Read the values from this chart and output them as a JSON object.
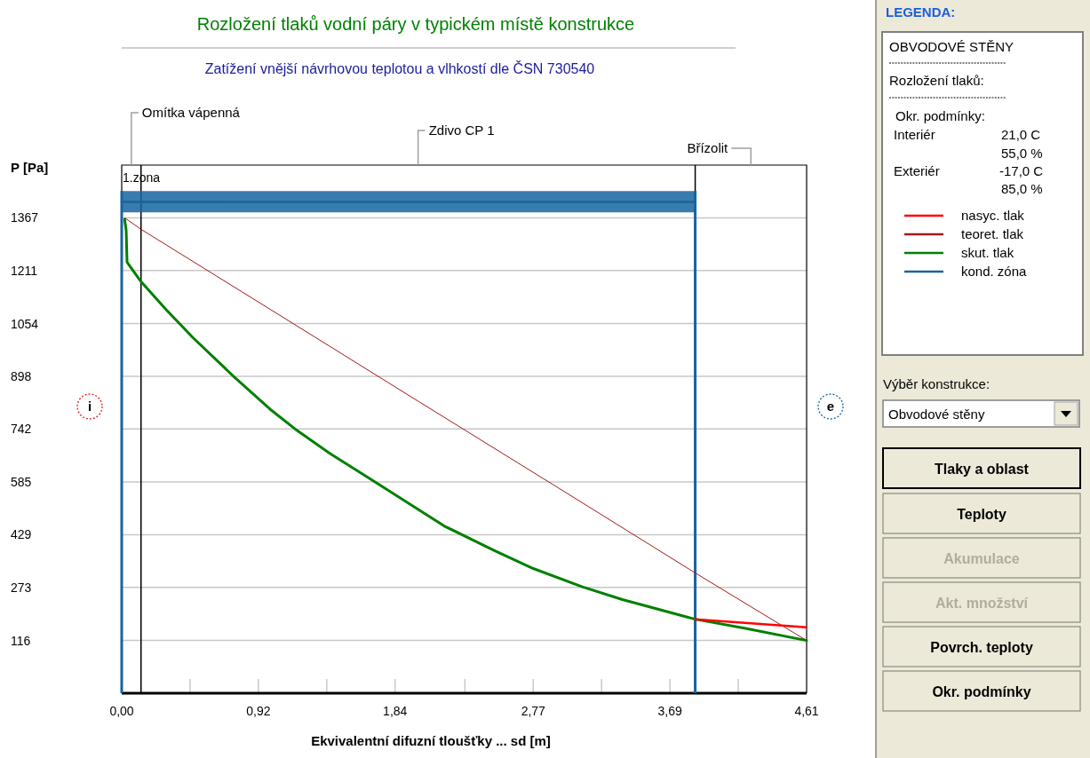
{
  "chart_data": {
    "type": "line",
    "title": "Rozložení tlaků vodní páry v typickém místě konstrukce",
    "subtitle": "Zatížení vnější návrhovou teplotou a vlhkostí dle ČSN 730540",
    "xlabel": "Ekvivalentní difuzní tloušťky ... sd [m]",
    "ylabel": "P [Pa]",
    "legend_title": "LEGENDA:",
    "xlim": [
      0,
      4.61
    ],
    "ylim": [
      -40,
      1523
    ],
    "xticks": [
      {
        "value": 0,
        "label": "0,00"
      },
      {
        "value": 0.46,
        "label": null
      },
      {
        "value": 0.92,
        "label": "0,92"
      },
      {
        "value": 1.38,
        "label": null
      },
      {
        "value": 1.84,
        "label": "1,84"
      },
      {
        "value": 2.31,
        "label": null
      },
      {
        "value": 2.77,
        "label": "2,77"
      },
      {
        "value": 3.23,
        "label": null
      },
      {
        "value": 3.69,
        "label": "3,69"
      },
      {
        "value": 4.15,
        "label": null
      },
      {
        "value": 4.61,
        "label": "4,61"
      }
    ],
    "yticks": [
      116,
      273,
      429,
      585,
      742,
      898,
      1054,
      1211,
      1367
    ],
    "grid": "y",
    "legend": "right",
    "line_style": "solid",
    "marker": "none",
    "series": [
      {
        "name": "nasyc. tlak",
        "color": "#ff0000",
        "x": [
          3.86,
          4.61
        ],
        "values": [
          179,
          155
        ]
      },
      {
        "name": "teoret. tlak",
        "color": "#a01818",
        "x": [
          0.02,
          0.13,
          1.0,
          2.0,
          3.0,
          3.86,
          4.61
        ],
        "values": [
          1367,
          1333,
          1096,
          823,
          551,
          316,
          116
        ]
      },
      {
        "name": "skut. tlak",
        "color": "#008000",
        "x": [
          0.02,
          0.03,
          0.036,
          0.13,
          0.3,
          0.48,
          0.75,
          1.0,
          1.17,
          1.4,
          1.71,
          2.17,
          2.5,
          2.77,
          3.1,
          3.37,
          3.86,
          4.2,
          4.61
        ],
        "values": [
          1362,
          1330,
          1236,
          1178,
          1095,
          1012,
          899,
          800,
          741,
          670,
          584,
          455,
          384,
          329,
          275,
          237,
          179,
          152,
          116
        ]
      },
      {
        "name": "kond. zóna",
        "color": "#1764a0",
        "x": [
          0,
          3.86
        ],
        "values": [
          1414,
          1414
        ],
        "lower": [
          1383,
          1383
        ],
        "upper": [
          1446,
          1446
        ]
      }
    ],
    "ref_lines": [
      {
        "axis": "x",
        "value": 0.13,
        "color": "#000000"
      },
      {
        "axis": "x",
        "value": 3.86,
        "color": "#000000"
      },
      {
        "axis": "x",
        "value": 0,
        "color": "#1764a0"
      },
      {
        "axis": "x",
        "value": 3.86,
        "color": "#1764a0"
      }
    ],
    "annotations": [
      "Omítka vápenná",
      "Zdivo CP 1",
      "Břízolit",
      "1.zona",
      "i",
      "e",
      "OBVODOVÉ STĚNY",
      "Rozložení tlaků:",
      "Okr. podmínky:",
      "Interiér",
      "21,0 C",
      "55,0 %",
      "Exteriér",
      "-17,0 C",
      "85,0 %",
      "Výběr konstrukce:",
      "Obvodové stěny",
      "Tlaky a oblast",
      "Teploty",
      "Akumulace",
      "Akt. množství",
      "Povrch. teploty",
      "Okr. podmínky"
    ]
  }
}
